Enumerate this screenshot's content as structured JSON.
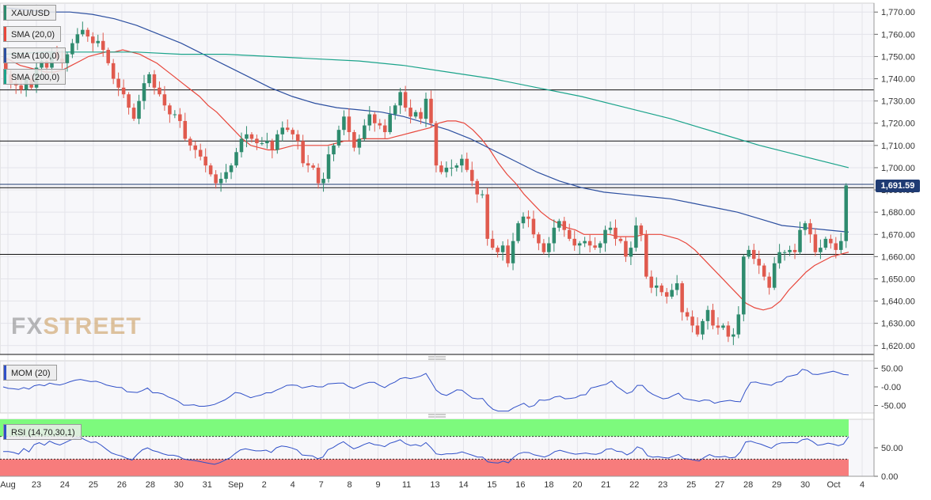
{
  "chart_data": {
    "type": "candlestick",
    "symbol": "XAU/USD",
    "legend": [
      "SMA (20,0)",
      "SMA (100,0)",
      "SMA (200,0)"
    ],
    "last_price_label": "1,691.59",
    "watermark_fx": "FX",
    "watermark_street": "STREET",
    "y_ticks": [
      "1,770.00",
      "1,760.00",
      "1,750.00",
      "1,740.00",
      "1,730.00",
      "1,720.00",
      "1,710.00",
      "1,700.00",
      "1,690.00",
      "1,680.00",
      "1,670.00",
      "1,660.00",
      "1,650.00",
      "1,640.00",
      "1,630.00",
      "1,620.00"
    ],
    "ylim": [
      1616,
      1774
    ],
    "x_ticks": [
      "Aug",
      "23",
      "24",
      "25",
      "26",
      "28",
      "30",
      "31",
      "Sep",
      "2",
      "4",
      "7",
      "8",
      "9",
      "11",
      "13",
      "14",
      "15",
      "16",
      "18",
      "20",
      "21",
      "22",
      "23",
      "25",
      "27",
      "28",
      "29",
      "30",
      "Oct",
      "4"
    ],
    "horizontal_levels": [
      1735,
      1712,
      1691,
      1661,
      1616
    ],
    "candles": {
      "o": [
        1749,
        1742,
        1738,
        1737,
        1735,
        1740,
        1736,
        1745,
        1748,
        1745,
        1752,
        1749,
        1747,
        1751,
        1756,
        1760,
        1762,
        1759,
        1756,
        1757,
        1753,
        1747,
        1740,
        1736,
        1733,
        1727,
        1722,
        1730,
        1738,
        1742,
        1736,
        1733,
        1728,
        1724,
        1724,
        1721,
        1713,
        1710,
        1708,
        1705,
        1701,
        1697,
        1693,
        1695,
        1698,
        1701,
        1707,
        1713,
        1715,
        1713,
        1711,
        1711,
        1712,
        1708,
        1715,
        1718,
        1717,
        1715,
        1712,
        1702,
        1701,
        1700,
        1693,
        1695,
        1706,
        1710,
        1717,
        1723,
        1716,
        1709,
        1713,
        1719,
        1724,
        1720,
        1719,
        1716,
        1724,
        1728,
        1734,
        1727,
        1723,
        1725,
        1722,
        1731,
        1720,
        1701,
        1698,
        1700,
        1700,
        1701,
        1704,
        1699,
        1694,
        1688,
        1688,
        1668,
        1664,
        1662,
        1665,
        1657,
        1667,
        1675,
        1678,
        1677,
        1670,
        1666,
        1662,
        1666,
        1673,
        1676,
        1672,
        1668,
        1665,
        1666,
        1667,
        1665,
        1664,
        1666,
        1672,
        1673,
        1668,
        1667,
        1660,
        1664,
        1674,
        1670,
        1651,
        1646,
        1647,
        1644,
        1642,
        1645,
        1648,
        1635,
        1633,
        1629,
        1625,
        1631,
        1636,
        1629,
        1628,
        1629,
        1624,
        1625,
        1634,
        1660,
        1663,
        1659,
        1656,
        1651,
        1646,
        1657,
        1662,
        1662,
        1663,
        1662,
        1672,
        1675,
        1670,
        1662,
        1664,
        1668,
        1666,
        1663,
        1667
      ],
      "c": [
        1742,
        1738,
        1737,
        1735,
        1740,
        1736,
        1745,
        1748,
        1745,
        1752,
        1749,
        1747,
        1751,
        1756,
        1760,
        1762,
        1759,
        1756,
        1757,
        1753,
        1747,
        1740,
        1736,
        1733,
        1727,
        1722,
        1730,
        1738,
        1742,
        1736,
        1733,
        1728,
        1724,
        1724,
        1721,
        1713,
        1710,
        1708,
        1705,
        1701,
        1697,
        1693,
        1695,
        1698,
        1701,
        1707,
        1713,
        1715,
        1713,
        1711,
        1711,
        1712,
        1708,
        1715,
        1718,
        1717,
        1715,
        1712,
        1702,
        1701,
        1700,
        1693,
        1695,
        1706,
        1710,
        1717,
        1723,
        1716,
        1709,
        1713,
        1719,
        1724,
        1720,
        1719,
        1716,
        1724,
        1728,
        1734,
        1727,
        1723,
        1725,
        1722,
        1731,
        1720,
        1701,
        1698,
        1700,
        1700,
        1701,
        1704,
        1699,
        1694,
        1688,
        1688,
        1668,
        1664,
        1662,
        1665,
        1657,
        1667,
        1675,
        1678,
        1677,
        1670,
        1666,
        1662,
        1666,
        1673,
        1676,
        1672,
        1668,
        1665,
        1666,
        1667,
        1665,
        1664,
        1666,
        1672,
        1673,
        1668,
        1667,
        1660,
        1664,
        1674,
        1670,
        1651,
        1646,
        1647,
        1644,
        1642,
        1645,
        1648,
        1635,
        1633,
        1629,
        1625,
        1631,
        1636,
        1629,
        1628,
        1629,
        1624,
        1625,
        1634,
        1660,
        1663,
        1659,
        1656,
        1651,
        1646,
        1657,
        1662,
        1662,
        1663,
        1662,
        1672,
        1675,
        1670,
        1662,
        1664,
        1668,
        1666,
        1663,
        1667,
        1692
      ]
    },
    "sma20": [
      1750,
      1748,
      1746,
      1745,
      1744,
      1743,
      1743,
      1744,
      1746,
      1748,
      1750,
      1751,
      1752,
      1752,
      1753,
      1752,
      1751,
      1749,
      1747,
      1744,
      1741,
      1738,
      1735,
      1732,
      1728,
      1725,
      1721,
      1717,
      1713,
      1710,
      1709,
      1708,
      1708,
      1709,
      1710,
      1710,
      1710,
      1710,
      1710,
      1711,
      1712,
      1712,
      1713,
      1713,
      1713,
      1713,
      1714,
      1715,
      1716,
      1717,
      1718,
      1720,
      1721,
      1721,
      1720,
      1717,
      1713,
      1708,
      1702,
      1697,
      1693,
      1688,
      1684,
      1680,
      1677,
      1675,
      1673,
      1672,
      1670,
      1670,
      1670,
      1670,
      1669,
      1669,
      1669,
      1670,
      1670,
      1670,
      1669,
      1668,
      1666,
      1663,
      1659,
      1655,
      1651,
      1647,
      1643,
      1639,
      1637,
      1636,
      1637,
      1640,
      1645,
      1649,
      1653,
      1656,
      1658,
      1660,
      1661,
      1662
    ],
    "sma100": [
      1772,
      1771,
      1770,
      1770,
      1769,
      1767,
      1764,
      1760,
      1756,
      1751,
      1746,
      1741,
      1736,
      1732,
      1729,
      1727,
      1726,
      1725,
      1723,
      1720,
      1717,
      1713,
      1708,
      1703,
      1698,
      1694,
      1691,
      1689,
      1688,
      1687,
      1686,
      1684,
      1682,
      1680,
      1677,
      1674,
      1673,
      1672,
      1671
    ],
    "sma200": [
      1751,
      1752,
      1752,
      1752,
      1751,
      1751,
      1750,
      1749,
      1748,
      1746,
      1743,
      1740,
      1736,
      1732,
      1727,
      1722,
      1716,
      1710,
      1705,
      1700
    ],
    "mom": {
      "ticks": [
        "50.00",
        "-0.00",
        "-50.00"
      ],
      "ylim": [
        -70,
        70
      ]
    },
    "rsi": {
      "label": "RSI (14,70,30,1)",
      "ticks": [
        "50.00",
        "0.00"
      ],
      "ylim": [
        0,
        100
      ],
      "overbought": 70,
      "oversold": 30
    }
  },
  "labels": {
    "mom": "MOM (20)"
  },
  "colors": {
    "bull": "#2e8b6e",
    "bear": "#e05a4e",
    "sma20": "#e8473c",
    "sma100": "#2c4fa0",
    "sma200": "#1aa38a",
    "momentum": "#3050c8",
    "rsi_line": "#3050c8",
    "overbought_fill": "#7dfa7d",
    "oversold_fill": "#f77c7c",
    "price_tag": "#1f3b73"
  }
}
